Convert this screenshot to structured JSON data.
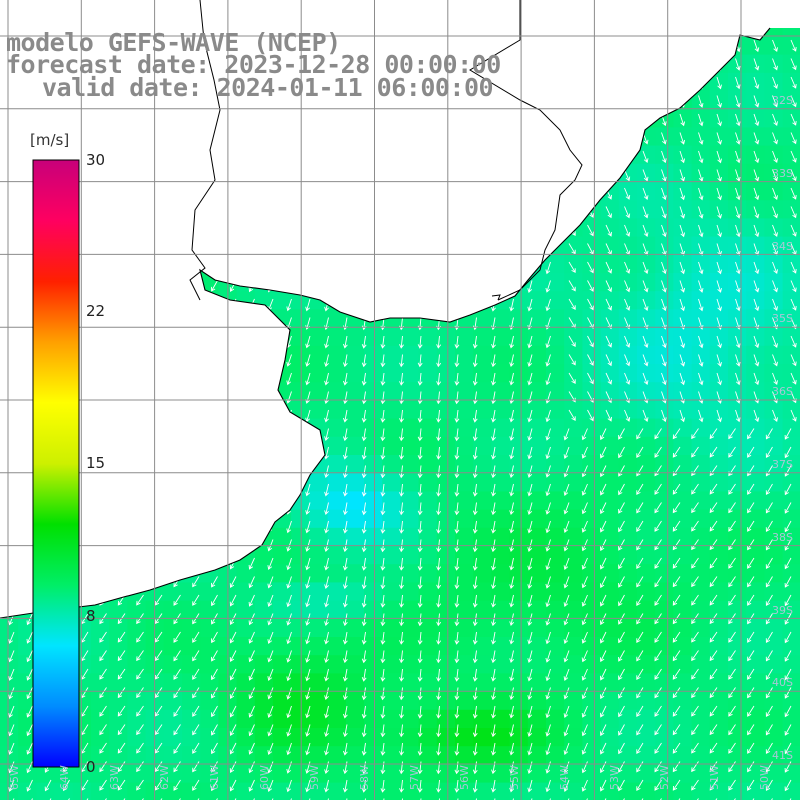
{
  "title": {
    "line1": "modelo GEFS-WAVE (NCEP)",
    "line2": "forecast date: 2023-12-28 00:00:00",
    "line3": "valid date: 2024-01-11 06:00:00"
  },
  "colorbar": {
    "unit": "[m/s]",
    "ticks": [
      "30",
      "22",
      "15",
      "8",
      "0"
    ],
    "colors": [
      "#0000ff",
      "#008cff",
      "#00e5ff",
      "#00ee66",
      "#00e000",
      "#cdf000",
      "#ffff00",
      "#ffa000",
      "#ff2000",
      "#ff0060",
      "#c8007a"
    ]
  },
  "grid": {
    "lat_labels": [
      "32S",
      "33S",
      "34S",
      "35S",
      "36S",
      "37S",
      "38S",
      "39S",
      "40S",
      "41S"
    ],
    "lon_labels": [
      "65W",
      "64W",
      "63W",
      "62W",
      "61W",
      "60W",
      "59W",
      "58W",
      "57W",
      "56W",
      "55W",
      "54W",
      "53W",
      "52W",
      "51W",
      "50W"
    ]
  },
  "colors": {
    "land": "#ffffff",
    "coast": "#000000",
    "grid": "#8c8c8c",
    "title": "#8a8a8a",
    "arrows": "#ffffff"
  }
}
